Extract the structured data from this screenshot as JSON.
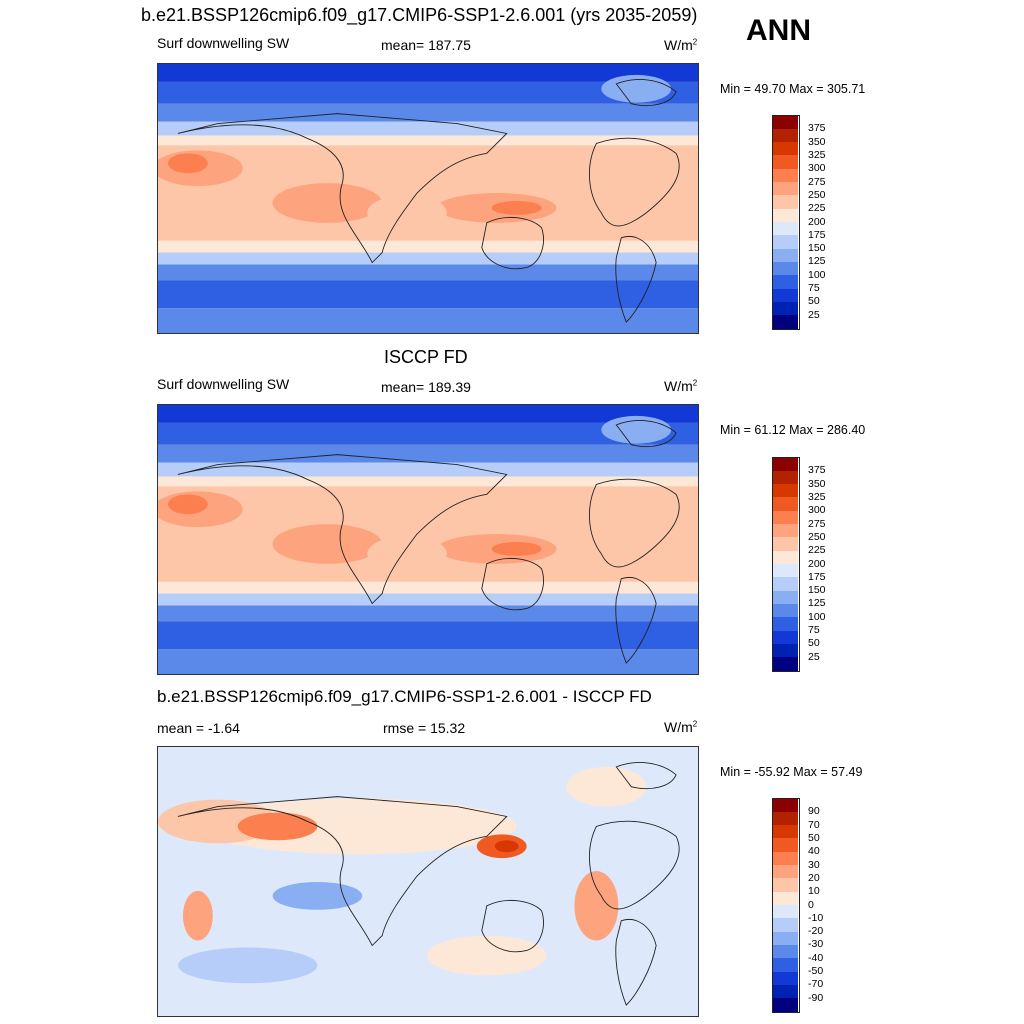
{
  "season": "ANN",
  "panels": [
    {
      "title": "b.e21.BSSP126cmip6.f09_g17.CMIP6-SSP1-2.6.001 (yrs 2035-2059)",
      "left_label": "Surf downwelling SW",
      "center_label": "mean= 187.75",
      "units": "W/m",
      "units_sup": "2",
      "minmax": "Min =  49.70 Max = 305.71",
      "map_name": "model-map"
    },
    {
      "title": "ISCCP FD",
      "left_label": "Surf downwelling SW",
      "center_label": "mean= 189.39",
      "units": "W/m",
      "units_sup": "2",
      "minmax": "Min =  61.12 Max = 286.40",
      "map_name": "obs-map"
    },
    {
      "title": "b.e21.BSSP126cmip6.f09_g17.CMIP6-SSP1-2.6.001 - ISCCP FD",
      "left_label": "mean =  -1.64",
      "center_label": "rmse =  15.32",
      "units": "W/m",
      "units_sup": "2",
      "minmax": "Min = -55.92 Max =  57.49",
      "map_name": "diff-map"
    }
  ],
  "colorbars": {
    "abs": {
      "labels": [
        "375",
        "350",
        "325",
        "300",
        "275",
        "250",
        "225",
        "200",
        "175",
        "150",
        "125",
        "100",
        "75",
        "50",
        "25"
      ],
      "colors": [
        "#8b0000",
        "#b22100",
        "#d73800",
        "#f05a22",
        "#fc7f4f",
        "#fda37e",
        "#fdc6a8",
        "#fde8d8",
        "#dde9fb",
        "#b5cdf8",
        "#8aaef2",
        "#5b89ea",
        "#2f5fe3",
        "#1238d5",
        "#0022b2",
        "#000080"
      ]
    },
    "diff": {
      "labels": [
        "90",
        "70",
        "50",
        "40",
        "30",
        "20",
        "10",
        "0",
        "-10",
        "-20",
        "-30",
        "-40",
        "-50",
        "-70",
        "-90"
      ],
      "colors": [
        "#8b0000",
        "#b22100",
        "#d73800",
        "#f05a22",
        "#fc7f4f",
        "#fda37e",
        "#fdc6a8",
        "#fde8d8",
        "#dde9fb",
        "#b5cdf8",
        "#8aaef2",
        "#5b89ea",
        "#2f5fe3",
        "#1238d5",
        "#0022b2",
        "#000080"
      ]
    }
  }
}
